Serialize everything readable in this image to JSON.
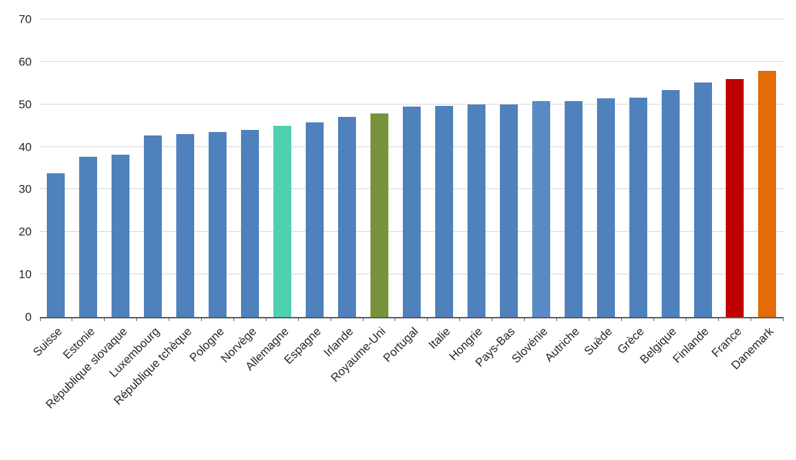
{
  "chart_data": {
    "type": "bar",
    "title": "",
    "xlabel": "",
    "ylabel": "",
    "ylim": [
      0,
      70
    ],
    "yticks": [
      0,
      10,
      20,
      30,
      40,
      50,
      60,
      70
    ],
    "grid": true,
    "legend": false,
    "categories": [
      "Suisse",
      "Estonie",
      "République slovaque",
      "Luxembourg",
      "République tchèque",
      "Pologne",
      "Norvège",
      "Allemagne",
      "Espagne",
      "Irlande",
      "Royaume-Uni",
      "Portugal",
      "Italie",
      "Hongrie",
      "Pays-Bas",
      "Slovénie",
      "Autriche",
      "Suède",
      "Grèce",
      "Belgique",
      "Finlande",
      "France",
      "Danemark"
    ],
    "values": [
      33.8,
      37.7,
      38.2,
      42.7,
      43.0,
      43.5,
      44.0,
      45.0,
      45.8,
      47.0,
      47.8,
      49.4,
      49.6,
      50.0,
      50.0,
      50.7,
      50.7,
      51.4,
      51.6,
      53.4,
      55.2,
      55.9,
      57.8
    ],
    "colors": [
      "#4F81BD",
      "#4F81BD",
      "#4F81BD",
      "#4F81BD",
      "#4F81BD",
      "#4F81BD",
      "#4F81BD",
      "#4FD1B0",
      "#4F81BD",
      "#4F81BD",
      "#78923C",
      "#4F81BD",
      "#4F81BD",
      "#4F81BD",
      "#4F81BD",
      "#5A8AC6",
      "#4F81BD",
      "#4F81BD",
      "#4F81BD",
      "#4F81BD",
      "#4F81BD",
      "#C00000",
      "#E36C09"
    ],
    "colors_meta": {
      "default_bar": "#4F81BD",
      "highlight_allemagne": "#4FD1B0",
      "highlight_royaume_uni": "#78923C",
      "highlight_france": "#C00000",
      "highlight_danemark": "#E36C09",
      "gridline": "#d6d6d6",
      "axis": "#595959",
      "text": "#262626"
    }
  }
}
